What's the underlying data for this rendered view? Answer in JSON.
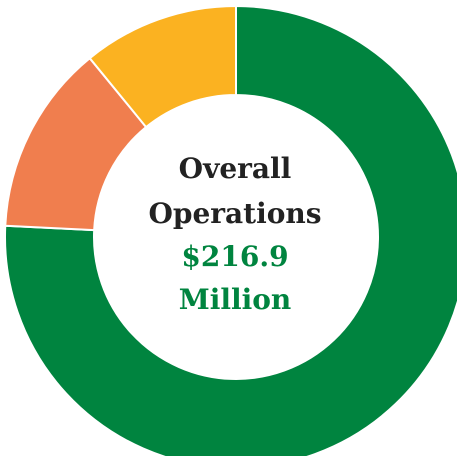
{
  "chart_data": {
    "type": "pie",
    "variant": "donut",
    "title": "",
    "slices": [
      {
        "value": 75.7,
        "color": "#00843F"
      },
      {
        "value": 13.3,
        "color": "#F07E4E"
      },
      {
        "value": 10.9,
        "color": "#FBB221"
      }
    ],
    "legend": "none",
    "center_label": {
      "line1": "Overall",
      "line2": "Operations",
      "value_line1": "$216.9",
      "value_line2": "Million"
    }
  },
  "colors": {
    "center_label_text": "#222222",
    "center_value_text": "#00843F",
    "slice_separator": "#ffffff"
  }
}
